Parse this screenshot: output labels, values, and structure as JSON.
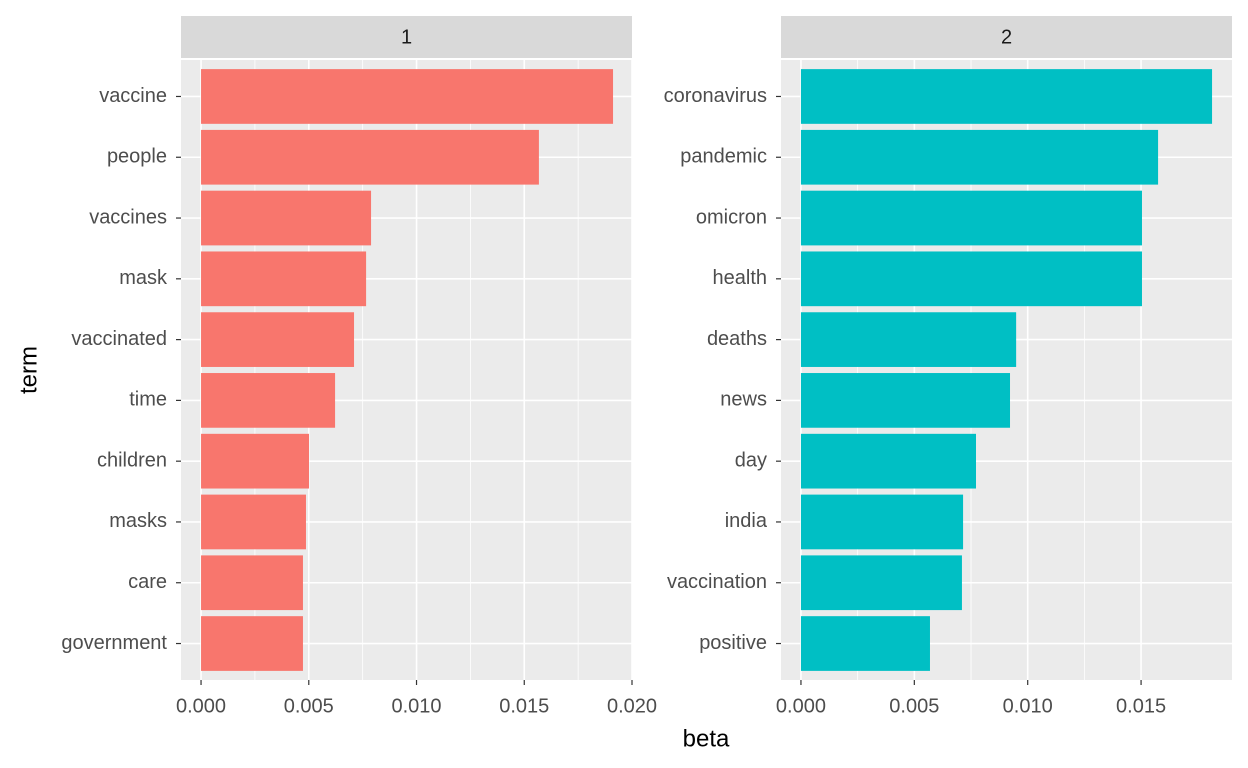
{
  "chart_data": [
    {
      "type": "bar",
      "orientation": "horizontal",
      "title": "1",
      "x_label": "beta",
      "y_label": "term",
      "color": "#f8766d",
      "grid": true,
      "categories": [
        "vaccine",
        "people",
        "vaccines",
        "mask",
        "vaccinated",
        "time",
        "children",
        "masks",
        "care",
        "government"
      ],
      "values": [
        0.01912,
        0.01568,
        0.00789,
        0.00766,
        0.0071,
        0.00622,
        0.00501,
        0.00487,
        0.00473,
        0.00473
      ],
      "xlim": [
        -0.00093,
        0.02
      ],
      "xticks": [
        {
          "value": 0,
          "label": "0.000"
        },
        0.005,
        {
          "value": 0.01,
          "label": "0.010"
        },
        0.015,
        {
          "value": 0.02,
          "label": "0.020"
        }
      ]
    },
    {
      "type": "bar",
      "orientation": "horizontal",
      "title": "2",
      "color": "#00bfc4",
      "grid": true,
      "categories": [
        "coronavirus",
        "pandemic",
        "omicron",
        "health",
        "deaths",
        "news",
        "day",
        "india",
        "vaccination",
        "positive"
      ],
      "values": [
        0.01813,
        0.01575,
        0.01504,
        0.01504,
        0.00949,
        0.00922,
        0.00772,
        0.00715,
        0.0071,
        0.00569
      ],
      "xlim": [
        -0.00088,
        0.01901
      ],
      "xticks": [
        {
          "value": 0,
          "label": "0.000"
        },
        0.005,
        {
          "value": 0.01,
          "label": "0.010"
        },
        0.015
      ]
    }
  ]
}
